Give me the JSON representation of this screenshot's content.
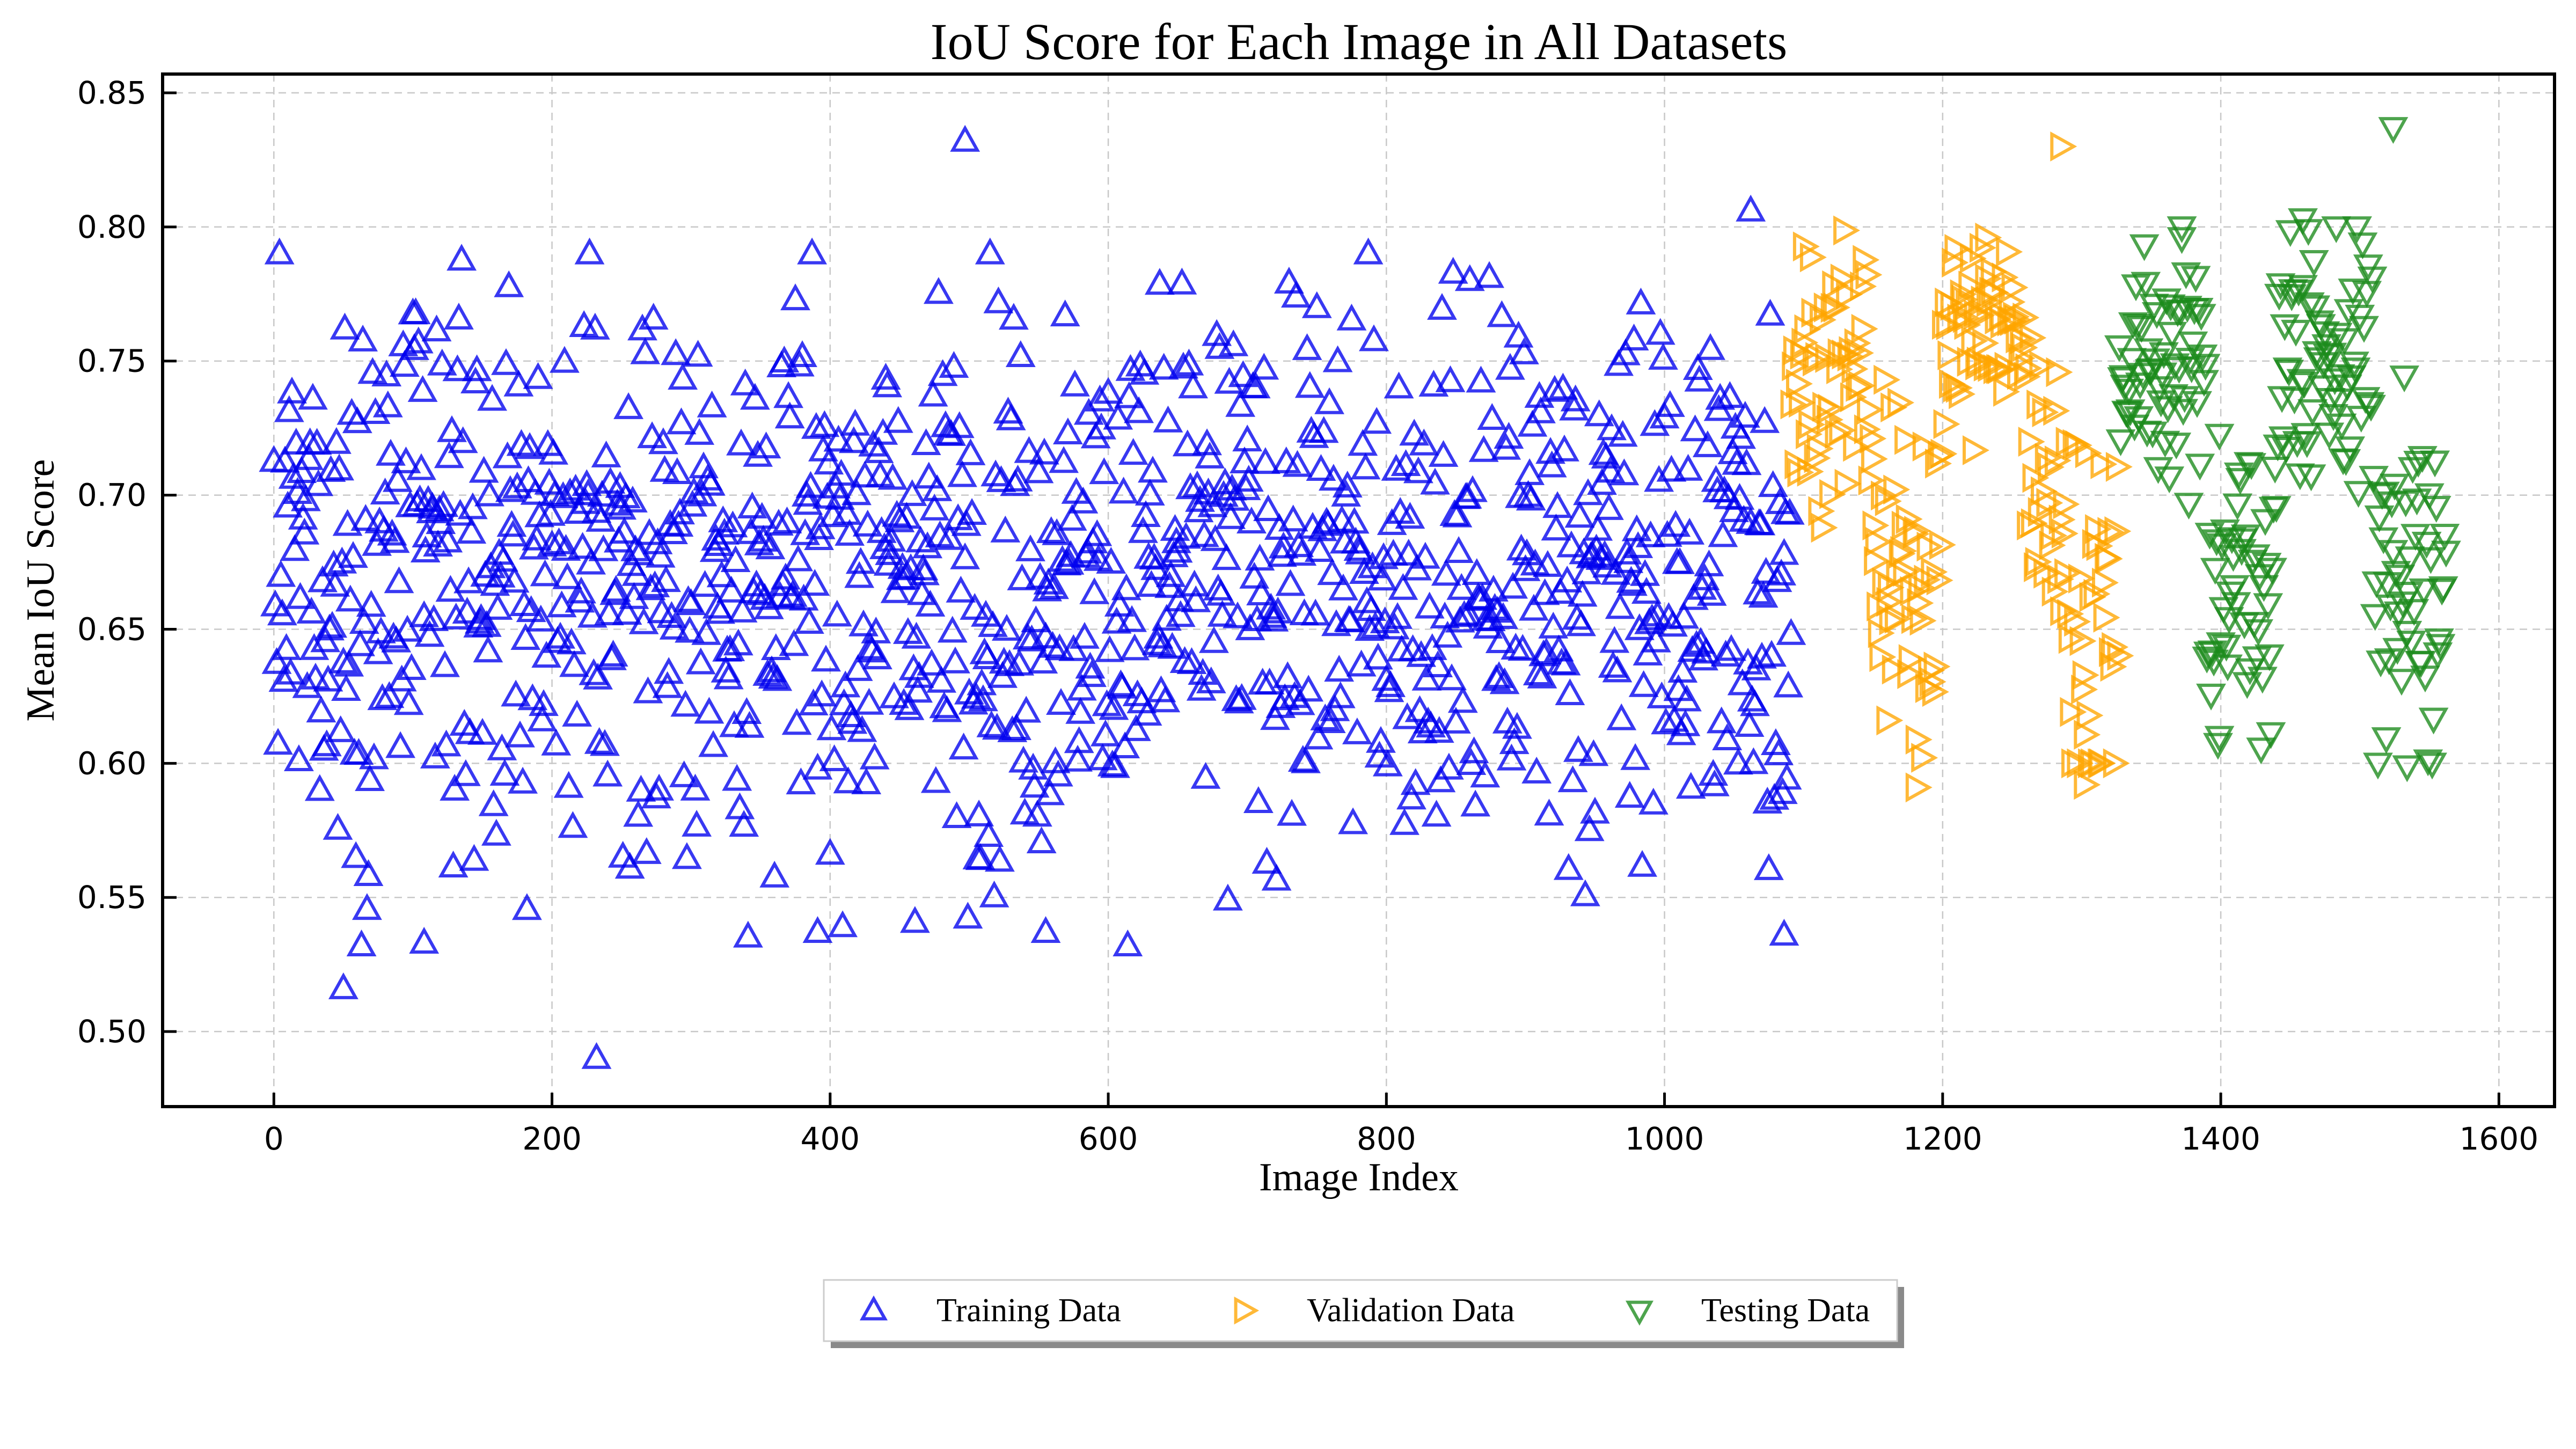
{
  "chart_data": {
    "type": "scatter",
    "title": "IoU Score for Each Image in All Datasets",
    "xlabel": "Image Index",
    "ylabel": "Mean IoU Score",
    "xlim": [
      -80,
      1640
    ],
    "ylim": [
      0.472,
      0.857
    ],
    "xticks": [
      0,
      200,
      400,
      600,
      800,
      1000,
      1200,
      1400,
      1600
    ],
    "yticks": [
      0.5,
      0.55,
      0.6,
      0.65,
      0.7,
      0.75,
      0.8,
      0.85
    ],
    "ytick_labels": [
      "0.50",
      "0.55",
      "0.60",
      "0.65",
      "0.70",
      "0.75",
      "0.80",
      "0.85"
    ],
    "grid": true,
    "legend_position": "bottom-center (below axes)",
    "series": [
      {
        "name": "Training Data",
        "marker": "triangle-up",
        "color": "#0000ee",
        "x_range": [
          0,
          1091
        ],
        "y_mean": 0.67,
        "y_sd": 0.05,
        "y_min": 0.49,
        "y_max": 0.832,
        "notable_points": [
          [
            497,
            0.832
          ],
          [
            1062,
            0.806
          ],
          [
            232,
            0.49
          ],
          [
            50,
            0.516
          ],
          [
            108,
            0.533
          ],
          [
            391,
            0.537
          ],
          [
            1086,
            0.536
          ],
          [
            555,
            0.537
          ]
        ]
      },
      {
        "name": "Validation Data",
        "marker": "triangle-right",
        "color": "#ffa500",
        "x_range": [
          1091,
          1327
        ],
        "y_min": 0.591,
        "y_max": 0.83,
        "notable_points": [
          [
            1285,
            0.83
          ],
          [
            1231,
            0.796
          ],
          [
            1181,
            0.591
          ],
          [
            1302,
            0.592
          ],
          [
            1160,
            0.616
          ]
        ]
      },
      {
        "name": "Testing Data",
        "marker": "triangle-down",
        "color": "#1b8a1b",
        "x_range": [
          1327,
          1563
        ],
        "y_min": 0.599,
        "y_max": 0.837,
        "notable_points": [
          [
            1524,
            0.837
          ],
          [
            1459,
            0.803
          ],
          [
            1372,
            0.8
          ],
          [
            1534,
            0.599
          ],
          [
            1399,
            0.61
          ]
        ]
      }
    ]
  }
}
